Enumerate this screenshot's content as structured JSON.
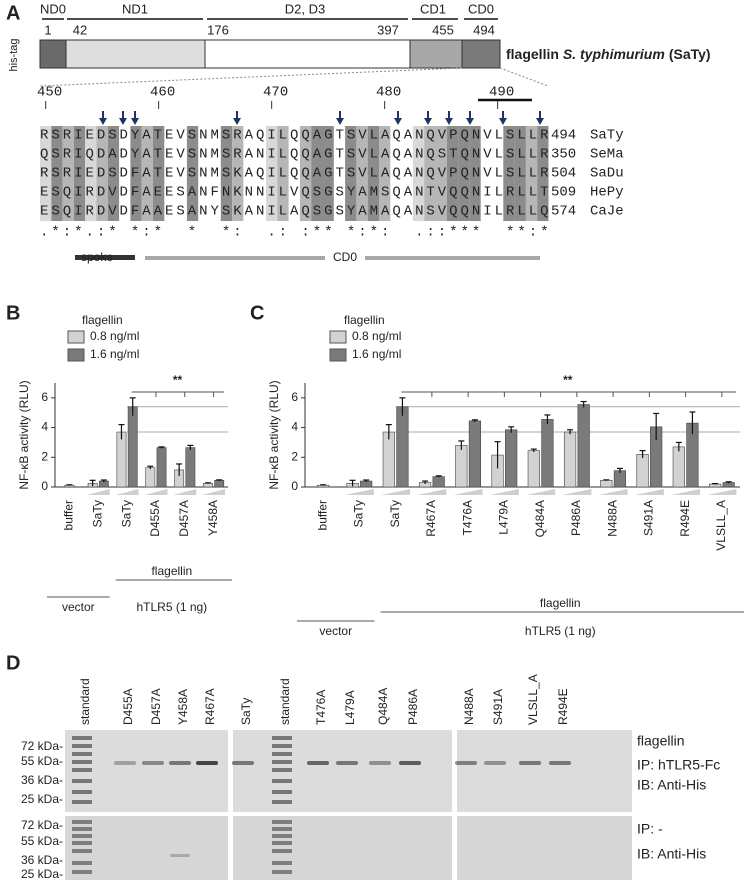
{
  "panel_a": {
    "label": "A",
    "tag": "his-tag",
    "domains": [
      "ND0",
      "ND1",
      "D2, D3",
      "CD1",
      "CD0"
    ],
    "positions": [
      1,
      42,
      176,
      397,
      455,
      494
    ],
    "construct": [
      "flagellin",
      "S. typhimurium",
      "(SaTy)"
    ],
    "alignment": {
      "ruler": [
        450,
        460,
        470,
        480,
        490
      ],
      "rows": [
        {
          "sequence": "RSRIEDSDYATEVSNMSRAQILQQAGTSVLAQANQVPQNVLSLLR",
          "end": 494,
          "name": "SaTy"
        },
        {
          "sequence": "QSRIQDADYATEVSNMSRANILQQAGTSVLAQANQSTQNVLSLLR",
          "end": 350,
          "name": "SeMa"
        },
        {
          "sequence": "RSRIEDSDFATEVSNMSKAQILQQAGTSVLAQANQVPQNVLSLLR",
          "end": 504,
          "name": "SaDu"
        },
        {
          "sequence": "ESQIRDVDFAEESANFNKNNILVQSGSYAMSQANTVQQNILRLLT",
          "end": 509,
          "name": "HePy"
        },
        {
          "sequence": "ESQIRDVDFAAESANYSKANILAQSGSYAMAQANSVQQNILRLLQ",
          "end": 574,
          "name": "CaJe"
        }
      ],
      "conservation": ".*:*.:* *:*  *  *:  .: :** *:*:  .::***  **:*",
      "regions": [
        "spoke",
        "CD0"
      ]
    }
  },
  "chart_data": [
    {
      "type": "bar",
      "panel_label": "B",
      "legend_title": "flagellin",
      "y_label": "NF-κB activity (RLU)",
      "categories": [
        "buffer",
        "SaTy",
        "SaTy",
        "D455A",
        "D457A",
        "Y458A"
      ],
      "series": [
        {
          "name": "0.8 ng/ml",
          "color": "#d2d2d2",
          "values": [
            0.12,
            0.25,
            3.7,
            1.3,
            1.15,
            0.25
          ],
          "errors": [
            0.03,
            0.2,
            0.5,
            0.1,
            0.4,
            0.03
          ]
        },
        {
          "name": "1.6 ng/ml",
          "color": "#7a7a7a",
          "values": [
            null,
            0.4,
            5.4,
            2.65,
            2.65,
            0.45
          ],
          "errors": [
            null,
            0.07,
            0.6,
            0.05,
            0.15,
            0.03
          ]
        }
      ],
      "ylim": [
        0,
        7
      ],
      "yticks": [
        0,
        2,
        4,
        6
      ],
      "annotations": [
        "**"
      ],
      "group_labels": [
        "vector",
        "flagellin",
        "hTLR5 (1 ng)"
      ]
    },
    {
      "type": "bar",
      "panel_label": "C",
      "legend_title": "flagellin",
      "y_label": "NF-κB activity (RLU)",
      "categories": [
        "buffer",
        "SaTy",
        "SaTy",
        "R467A",
        "T476A",
        "L479A",
        "Q484A",
        "P486A",
        "N488A",
        "S491A",
        "R494E",
        "VLSLL_A"
      ],
      "series": [
        {
          "name": "0.8 ng/ml",
          "color": "#d2d2d2",
          "values": [
            0.12,
            0.25,
            3.7,
            0.3,
            2.8,
            2.15,
            2.45,
            3.7,
            0.45,
            2.2,
            2.7,
            0.2
          ],
          "errors": [
            0.03,
            0.2,
            0.5,
            0.1,
            0.3,
            0.9,
            0.1,
            0.15,
            0.03,
            0.25,
            0.3,
            0.03
          ]
        },
        {
          "name": "1.6 ng/ml",
          "color": "#7a7a7a",
          "values": [
            null,
            0.4,
            5.4,
            0.7,
            4.45,
            3.85,
            4.55,
            5.55,
            1.1,
            4.05,
            4.3,
            0.3
          ],
          "errors": [
            null,
            0.07,
            0.6,
            0.05,
            0.07,
            0.2,
            0.3,
            0.2,
            0.15,
            0.9,
            0.75,
            0.05
          ]
        }
      ],
      "ylim": [
        0,
        7
      ],
      "yticks": [
        0,
        2,
        4,
        6
      ],
      "annotations": [
        "**"
      ],
      "group_labels": [
        "vector",
        "flagellin",
        "hTLR5 (1 ng)"
      ]
    }
  ],
  "panel_d": {
    "label": "D",
    "lanes": [
      [
        "standard",
        "D455A",
        "D457A",
        "Y458A",
        "R467A"
      ],
      [
        "SaTy",
        "standard",
        "T476A",
        "L479A",
        "Q484A",
        "P486A"
      ],
      [
        "N488A",
        "S491A",
        "VLSLL_A",
        "R494E"
      ]
    ],
    "upper_markers": [
      "72 kDa-",
      "55 kDa-",
      "36 kDa-",
      "25 kDa-"
    ],
    "lower_markers": [
      "72 kDa-",
      "55 kDa-",
      "36 kDa-",
      "25 kDa-"
    ],
    "side_labels": [
      "flagellin",
      "IP: hTLR5-Fc",
      "IB: Anti-His",
      "IP: -",
      "IB: Anti-His"
    ]
  }
}
